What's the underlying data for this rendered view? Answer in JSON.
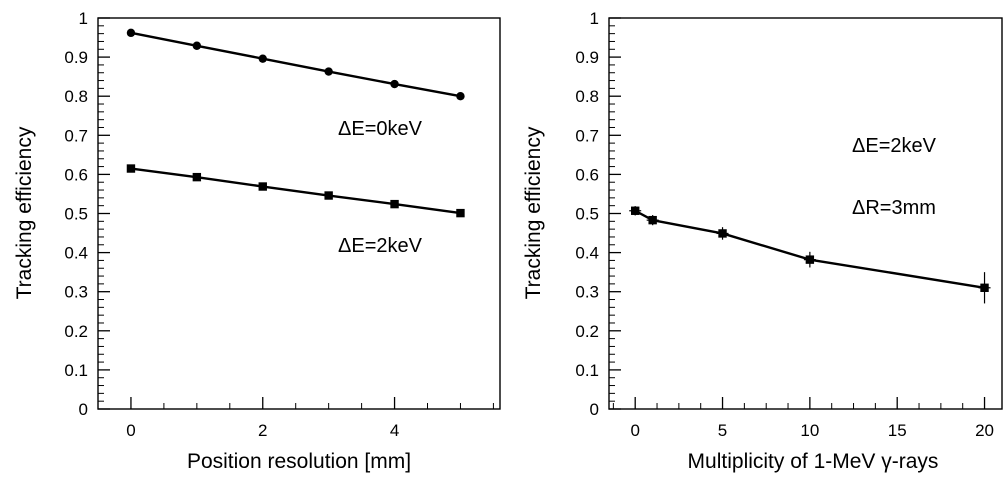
{
  "chart_data": [
    {
      "type": "line",
      "xlabel": "Position resolution [mm]",
      "ylabel": "Tracking efficiency",
      "xlim": [
        -0.5,
        5.6
      ],
      "ylim": [
        0,
        1
      ],
      "x_ticks": [
        0,
        2,
        4
      ],
      "x_tick_labels": [
        "0",
        "2",
        "4"
      ],
      "y_ticks": [
        0,
        0.1,
        0.2,
        0.3,
        0.4,
        0.5,
        0.6,
        0.7,
        0.8,
        0.9,
        1
      ],
      "y_tick_labels": [
        "0",
        "0.1",
        "0.2",
        "0.3",
        "0.4",
        "0.5",
        "0.6",
        "0.7",
        "0.8",
        "0.9",
        "1"
      ],
      "grid": false,
      "series": [
        {
          "name": "ΔE=0keV",
          "marker": "circle",
          "x": [
            0,
            1,
            2,
            3,
            4,
            5
          ],
          "y": [
            0.962,
            0.929,
            0.896,
            0.863,
            0.831,
            0.8
          ],
          "yerr": [
            0,
            0,
            0,
            0,
            0,
            0
          ]
        },
        {
          "name": "ΔE=2keV",
          "marker": "square",
          "x": [
            0,
            1,
            2,
            3,
            4,
            5
          ],
          "y": [
            0.615,
            0.593,
            0.569,
            0.546,
            0.524,
            0.501
          ],
          "yerr": [
            0,
            0,
            0,
            0,
            0,
            0
          ]
        }
      ],
      "annotations": [
        "ΔE=0keV",
        "ΔE=2keV"
      ]
    },
    {
      "type": "line",
      "xlabel": "Multiplicity of 1-MeV γ-rays",
      "ylabel": "Tracking efficiency",
      "xlim": [
        -1.5,
        21
      ],
      "ylim": [
        0,
        1
      ],
      "x_ticks": [
        0,
        5,
        10,
        15,
        20
      ],
      "x_tick_labels": [
        "0",
        "5",
        "10",
        "15",
        "20"
      ],
      "y_ticks": [
        0,
        0.1,
        0.2,
        0.3,
        0.4,
        0.5,
        0.6,
        0.7,
        0.8,
        0.9,
        1
      ],
      "y_tick_labels": [
        "0",
        "0.1",
        "0.2",
        "0.3",
        "0.4",
        "0.5",
        "0.6",
        "0.7",
        "0.8",
        "0.9",
        "1"
      ],
      "grid": false,
      "series": [
        {
          "marker": "square",
          "x": [
            0,
            1,
            5,
            10,
            20
          ],
          "y": [
            0.507,
            0.483,
            0.449,
            0.382,
            0.31
          ],
          "yerr": [
            0.012,
            0.013,
            0.016,
            0.02,
            0.04
          ]
        }
      ],
      "annotations": [
        "ΔE=2keV",
        "ΔR=3mm"
      ]
    }
  ]
}
